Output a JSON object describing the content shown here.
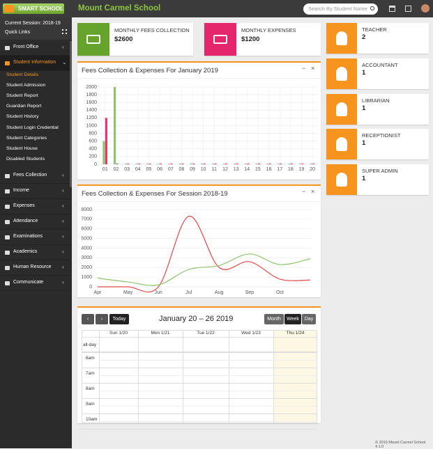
{
  "header": {
    "logo": "SMART SCHOOL",
    "school": "Mount Carmel School",
    "search_placeholder": "Search By Student Name"
  },
  "sidebar": {
    "session": "Current Session: 2018-19",
    "quick_links": "Quick Links",
    "menu": [
      {
        "label": "Front Office"
      },
      {
        "label": "Student Information",
        "active": true,
        "children": [
          "Student Details",
          "Student Admission",
          "Student Report",
          "Guardian Report",
          "Student History",
          "Student Login Credential",
          "Student Categories",
          "Student House",
          "Disabled Students"
        ]
      },
      {
        "label": "Fees Collection"
      },
      {
        "label": "Income"
      },
      {
        "label": "Expenses"
      },
      {
        "label": "Attendance"
      },
      {
        "label": "Examinations"
      },
      {
        "label": "Academics"
      },
      {
        "label": "Human Resource"
      },
      {
        "label": "Communicate"
      }
    ]
  },
  "summary": [
    {
      "label": "MONTHLY FEES COLLECTION",
      "value": "$2600",
      "color": "#66a32b"
    },
    {
      "label": "MONTHLY EXPENSES",
      "value": "$1200",
      "color": "#e5266d"
    }
  ],
  "staff": [
    {
      "label": "TEACHER",
      "value": 2
    },
    {
      "label": "ACCOUNTANT",
      "value": 1
    },
    {
      "label": "LIBRARIAN",
      "value": 1
    },
    {
      "label": "RECEPTIONIST",
      "value": 1
    },
    {
      "label": "SUPER ADMIN",
      "value": 1
    }
  ],
  "bar_chart": {
    "type": "bar",
    "title": "Fees Collection & Expenses For January 2019",
    "categories": [
      "01",
      "02",
      "03",
      "04",
      "05",
      "06",
      "07",
      "08",
      "09",
      "10",
      "11",
      "12",
      "13",
      "14",
      "15",
      "16",
      "17",
      "18",
      "19",
      "20"
    ],
    "series": [
      {
        "color": "#8cc56e",
        "values": [
          600,
          2000,
          0,
          0,
          0,
          0,
          0,
          0,
          0,
          0,
          0,
          0,
          0,
          0,
          0,
          0,
          0,
          0,
          0,
          0
        ]
      },
      {
        "color": "#e5336e",
        "values": [
          1200,
          0,
          0,
          0,
          0,
          0,
          0,
          0,
          0,
          0,
          0,
          0,
          0,
          0,
          0,
          0,
          0,
          0,
          0,
          0
        ]
      }
    ],
    "ylim": [
      0,
      2000
    ],
    "yticks": [
      0,
      200,
      400,
      600,
      800,
      1000,
      1200,
      1400,
      1600,
      1800,
      2000
    ],
    "grid": true
  },
  "line_chart": {
    "type": "line",
    "title": "Fees Collection & Expenses For Session 2018-19",
    "categories": [
      "Apr",
      "May",
      "Jun",
      "Jul",
      "Aug",
      "Sep",
      "Oct",
      null
    ],
    "series": [
      {
        "color": "#e04848",
        "values": [
          0,
          0,
          0,
          7300,
          2000,
          2600,
          800,
          700
        ]
      },
      {
        "color": "#8cc56e",
        "values": [
          900,
          500,
          200,
          1800,
          2200,
          3400,
          2300,
          2900
        ]
      }
    ],
    "ylim": [
      0,
      8000
    ],
    "yticks": [
      0,
      1000,
      2000,
      3000,
      4000,
      5000,
      6000,
      7000,
      8000
    ],
    "grid": true
  },
  "calendar": {
    "title": "January 20 – 26 2019",
    "today": "Today",
    "views": [
      "Month",
      "Week",
      "Day"
    ],
    "active_view": "Week",
    "days": [
      "Sun 1/20",
      "Mon 1/21",
      "Tue 1/22",
      "Wed 1/23",
      "Thu 1/24"
    ],
    "all_day": "all-day",
    "times": [
      "6am",
      "7am",
      "8am",
      "9am",
      "10am"
    ]
  },
  "footer": "© 2019 Mount Carmel School 4.1.0"
}
